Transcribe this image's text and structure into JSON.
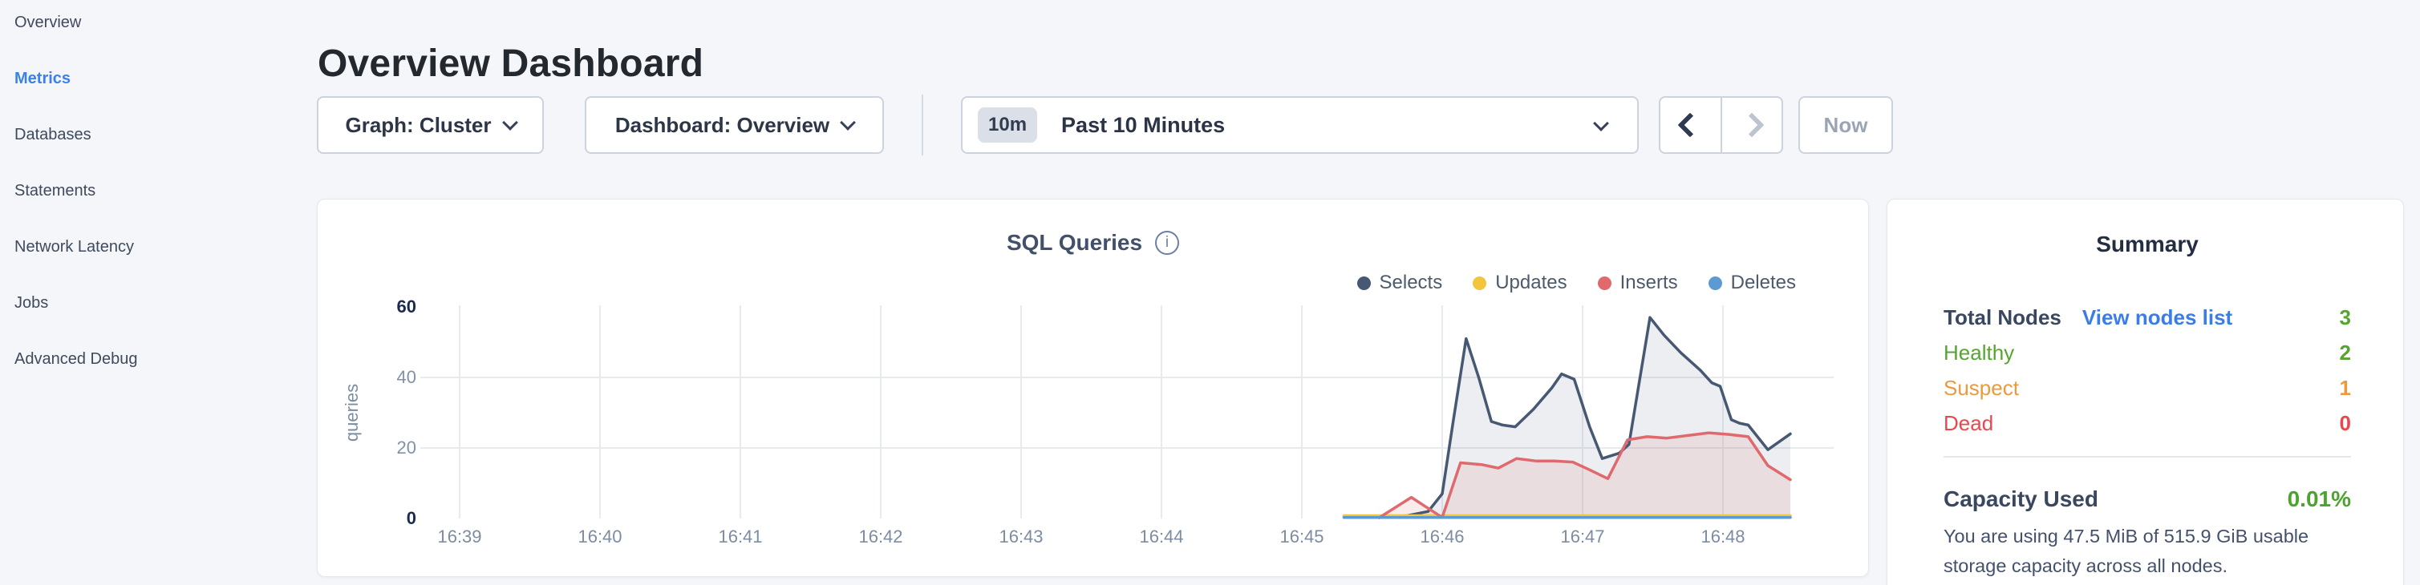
{
  "sidebar": {
    "items": [
      {
        "label": "Overview",
        "active": false
      },
      {
        "label": "Metrics",
        "active": true
      },
      {
        "label": "Databases",
        "active": false
      },
      {
        "label": "Statements",
        "active": false
      },
      {
        "label": "Network Latency",
        "active": false
      },
      {
        "label": "Jobs",
        "active": false
      },
      {
        "label": "Advanced Debug",
        "active": false
      }
    ]
  },
  "header": {
    "title": "Overview Dashboard"
  },
  "toolbar": {
    "graph_dropdown_label": "Graph: Cluster",
    "dashboard_dropdown_label": "Dashboard: Overview",
    "time_window_badge": "10m",
    "time_window_label": "Past 10 Minutes",
    "now_label": "Now"
  },
  "chart_data": {
    "type": "area",
    "title": "SQL Queries",
    "ylabel": "queries",
    "ylim": [
      0,
      60
    ],
    "y_ticks": [
      0,
      20,
      40,
      60
    ],
    "x_ticks": [
      "16:39",
      "16:40",
      "16:41",
      "16:42",
      "16:43",
      "16:44",
      "16:45",
      "16:46",
      "16:47",
      "16:48"
    ],
    "grid": true,
    "legend_position": "top-right",
    "x_unit_note": "t = minutes after 16:39",
    "series": [
      {
        "name": "Selects",
        "color": "#475872",
        "fill": "rgba(71,88,114,0.10)",
        "points": [
          [
            6.3,
            0.4
          ],
          [
            6.55,
            0.4
          ],
          [
            6.75,
            0.8
          ],
          [
            6.9,
            2
          ],
          [
            7.0,
            7
          ],
          [
            7.08,
            28
          ],
          [
            7.17,
            51
          ],
          [
            7.26,
            40
          ],
          [
            7.35,
            27.5
          ],
          [
            7.43,
            26.5
          ],
          [
            7.52,
            26
          ],
          [
            7.65,
            31
          ],
          [
            7.78,
            37
          ],
          [
            7.85,
            41
          ],
          [
            7.94,
            39.5
          ],
          [
            8.05,
            26
          ],
          [
            8.14,
            17
          ],
          [
            8.26,
            18.5
          ],
          [
            8.33,
            21
          ],
          [
            8.48,
            57
          ],
          [
            8.58,
            52
          ],
          [
            8.7,
            47
          ],
          [
            8.84,
            42
          ],
          [
            8.92,
            38.5
          ],
          [
            8.98,
            37.5
          ],
          [
            9.06,
            28
          ],
          [
            9.12,
            27
          ],
          [
            9.18,
            26.5
          ],
          [
            9.32,
            19.5
          ],
          [
            9.48,
            24
          ]
        ]
      },
      {
        "name": "Updates",
        "color": "#f2c53d",
        "fill": null,
        "points": [
          [
            6.3,
            0.8
          ],
          [
            9.48,
            0.8
          ]
        ]
      },
      {
        "name": "Inserts",
        "color": "#e0696d",
        "fill": "rgba(224,105,109,0.13)",
        "points": [
          [
            6.55,
            0.2
          ],
          [
            6.78,
            6
          ],
          [
            7.0,
            0.3
          ],
          [
            7.13,
            15.8
          ],
          [
            7.28,
            15.3
          ],
          [
            7.4,
            14.3
          ],
          [
            7.53,
            17
          ],
          [
            7.67,
            16.3
          ],
          [
            7.8,
            16.3
          ],
          [
            7.93,
            16
          ],
          [
            8.05,
            13.8
          ],
          [
            8.18,
            11.3
          ],
          [
            8.32,
            22.3
          ],
          [
            8.46,
            23.2
          ],
          [
            8.6,
            22.8
          ],
          [
            8.74,
            23.5
          ],
          [
            8.9,
            24.3
          ],
          [
            9.05,
            23.8
          ],
          [
            9.18,
            23.2
          ],
          [
            9.32,
            15
          ],
          [
            9.48,
            11
          ]
        ]
      },
      {
        "name": "Deletes",
        "color": "#5b9bd1",
        "fill": null,
        "points": [
          [
            6.3,
            0.3
          ],
          [
            9.48,
            0.3
          ]
        ]
      }
    ]
  },
  "summary": {
    "title": "Summary",
    "total_nodes": {
      "label": "Total Nodes",
      "link": "View nodes list",
      "value": "3"
    },
    "rows": [
      {
        "label": "Healthy",
        "value": "2",
        "status": "green"
      },
      {
        "label": "Suspect",
        "value": "1",
        "status": "orange"
      },
      {
        "label": "Dead",
        "value": "0",
        "status": "red"
      }
    ],
    "capacity": {
      "label": "Capacity Used",
      "value": "0.01%"
    },
    "note": "You are using 47.5 MiB of 515.9 GiB usable storage capacity across all nodes."
  },
  "colors": {
    "accent_blue": "#3b82e8",
    "link_blue": "#3b7de8",
    "green": "#56a531",
    "orange": "#eb9a3d",
    "red": "#e8484d",
    "capacity_green": "#4da32f",
    "page_bg": "#f4f6fa",
    "gridline": "#e7ebf0"
  }
}
